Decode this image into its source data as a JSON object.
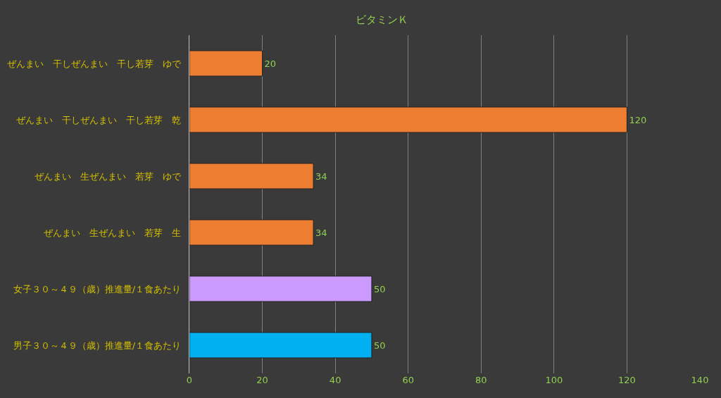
{
  "chart_data": {
    "type": "bar",
    "title": "ビタミンＫ",
    "orientation": "horizontal",
    "categories": [
      "ぜんまい　干しぜんまい　干し若芽　ゆで",
      "ぜんまい　干しぜんまい　干し若芽　乾",
      "ぜんまい　生ぜんまい　若芽　ゆで",
      "ぜんまい　生ぜんまい　若芽　生",
      "女子３０～４９（歳）推進量/１食あたり",
      "男子３０～４９（歳）推進量/１食あたり"
    ],
    "values": [
      20,
      120,
      34,
      34,
      50,
      50
    ],
    "colors": [
      "#ed7d31",
      "#ed7d31",
      "#ed7d31",
      "#ed7d31",
      "#cc99ff",
      "#00b0f0"
    ],
    "xlim": [
      0,
      140
    ],
    "xticks": [
      0,
      20,
      40,
      60,
      80,
      100,
      120,
      140
    ],
    "grid": "x",
    "data_labels": true
  }
}
